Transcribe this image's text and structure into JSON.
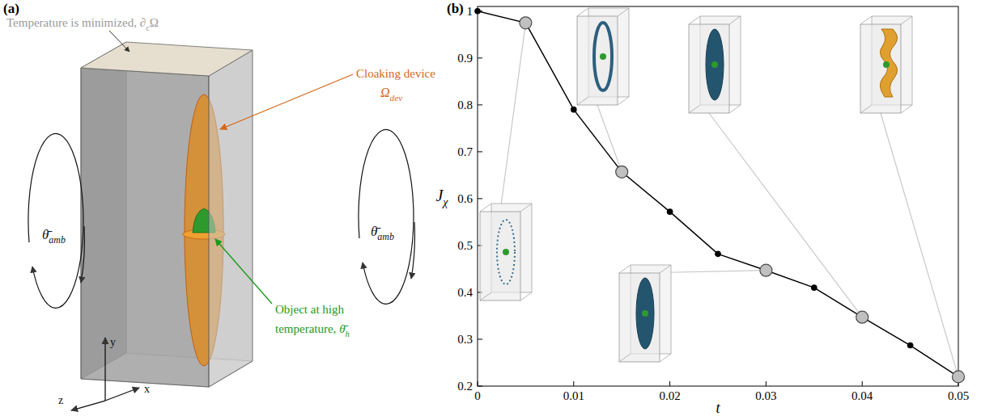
{
  "panel_a": {
    "label": "(a)",
    "top_note": [
      {
        "t": "Temperature is minimized, ∂"
      },
      {
        "t": "c",
        "sub": true
      },
      {
        "t": "Ω"
      }
    ],
    "device": {
      "title": "Cloaking device",
      "symbol": [
        {
          "t": "Ω",
          "it": true
        },
        {
          "t": "dev",
          "sub": true,
          "it": true
        }
      ]
    },
    "object": {
      "lines": [
        [
          {
            "t": "Object at high"
          }
        ],
        [
          {
            "t": "temperature, "
          },
          {
            "t": "θ̄",
            "it": true
          },
          {
            "t": "h",
            "sub": true,
            "it": true
          }
        ]
      ]
    },
    "ambient": [
      {
        "t": "θ̄",
        "it": true
      },
      {
        "t": "amb",
        "sub": true,
        "it": true
      }
    ],
    "axes": [
      "x",
      "y",
      "z"
    ]
  },
  "chart_data": {
    "type": "line",
    "panel_label": "(b)",
    "xlabel": "t",
    "ylabel": [
      {
        "t": "J",
        "it": true
      },
      {
        "t": "χ",
        "sub": true,
        "it": true
      }
    ],
    "x": [
      0,
      0.005,
      0.01,
      0.015,
      0.02,
      0.025,
      0.03,
      0.035,
      0.04,
      0.045,
      0.05
    ],
    "series": [
      {
        "color": "#000000",
        "marker": "dot",
        "line_style": "solid",
        "values": [
          1.0,
          0.975,
          0.79,
          0.657,
          0.572,
          0.482,
          0.447,
          0.41,
          0.347,
          0.287,
          0.22
        ]
      },
      {
        "color": "#c0c0c0",
        "marker": "circle",
        "line_style": "none",
        "values": [
          null,
          0.975,
          null,
          0.657,
          null,
          null,
          0.447,
          null,
          0.347,
          null,
          0.22
        ]
      }
    ],
    "xlim": [
      0,
      0.05
    ],
    "xticks": [
      0,
      0.01,
      0.02,
      0.03,
      0.04,
      0.05
    ],
    "ylim": [
      0.2,
      1.01
    ],
    "yticks": [
      0.2,
      0.3,
      0.4,
      0.5,
      0.6,
      0.7,
      0.8,
      0.9,
      1
    ],
    "grid": false
  }
}
